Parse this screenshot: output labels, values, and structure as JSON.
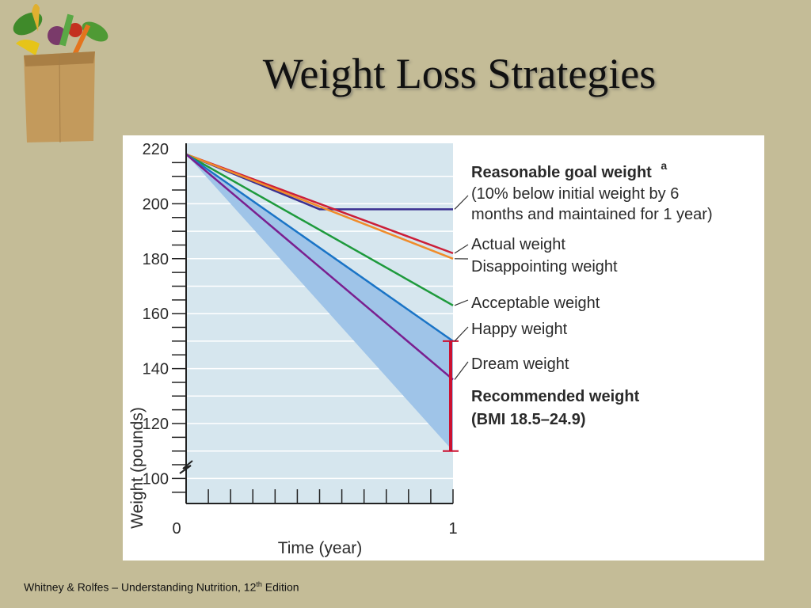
{
  "slide": {
    "title": "Weight Loss Strategies",
    "footer": {
      "prefix": "Whitney  & Rolfes – Understanding Nutrition, 12",
      "sup": "th",
      "suffix": " Edition"
    }
  },
  "logo": {
    "icon": "grocery-bag-icon"
  },
  "chart_data": {
    "type": "line",
    "xlabel": "Time (year)",
    "ylabel": "Weight (pounds)",
    "xlim": [
      0,
      1
    ],
    "ylim": [
      90,
      220
    ],
    "y_break": true,
    "x_ticks": [
      "0",
      "1"
    ],
    "y_ticks": [
      220,
      200,
      180,
      160,
      140,
      120,
      100
    ],
    "y_ticks_labels": [
      "220",
      "200",
      "180",
      "160",
      "140",
      "120",
      "100"
    ],
    "grid": "horizontal",
    "background_color": "#d6e6ee",
    "series": [
      {
        "name": "Reasonable goal weight",
        "x": [
          0,
          0.5,
          1
        ],
        "y": [
          218,
          198,
          198
        ],
        "color": "#3b3090"
      },
      {
        "name": "Actual weight",
        "x": [
          0,
          1
        ],
        "y": [
          218,
          182
        ],
        "color": "#cc1f38"
      },
      {
        "name": "Disappointing weight",
        "x": [
          0,
          1
        ],
        "y": [
          218,
          180
        ],
        "color": "#f08c2a"
      },
      {
        "name": "Acceptable weight",
        "x": [
          0,
          1
        ],
        "y": [
          218,
          163
        ],
        "color": "#1e9a3c"
      },
      {
        "name": "Happy weight",
        "x": [
          0,
          1
        ],
        "y": [
          218,
          150
        ],
        "color": "#1a74c6"
      },
      {
        "name": "Dream weight",
        "x": [
          0,
          1
        ],
        "y": [
          218,
          136
        ],
        "color": "#7a1f8f"
      }
    ],
    "shaded_region": {
      "x": [
        0,
        1
      ],
      "upper": [
        218,
        150
      ],
      "lower": [
        218,
        110
      ],
      "color": "#9fc4e8"
    },
    "recommended_range": {
      "x": 1,
      "low": 110,
      "high": 150,
      "color": "#cc1030"
    },
    "annotations": {
      "goal_title": "Reasonable goal weight",
      "goal_sup": "a",
      "goal_line2": "(10% below initial weight by 6",
      "goal_line3": "months and maintained for 1 year)",
      "actual": "Actual weight",
      "disappointing": "Disappointing weight",
      "acceptable": "Acceptable weight",
      "happy": "Happy weight",
      "dream": "Dream weight",
      "recommended_title": "Recommended weight",
      "recommended_range_label": "(BMI 18.5–24.9)"
    }
  }
}
